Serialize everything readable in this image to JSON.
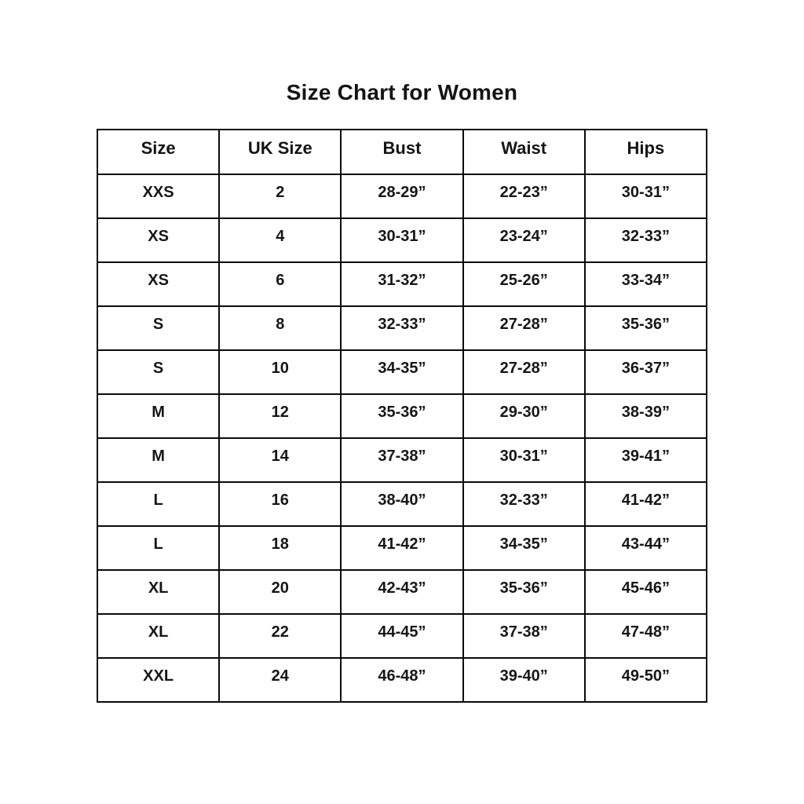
{
  "page": {
    "title": "Size Chart for Women"
  },
  "colors": {
    "background": "#ffffff",
    "border": "#0a0a0a",
    "text": "#141414"
  },
  "table": {
    "headers": [
      "Size",
      "UK Size",
      "Bust",
      "Waist",
      "Hips"
    ],
    "rows": [
      [
        "XXS",
        "2",
        "28-29”",
        "22-23”",
        "30-31”"
      ],
      [
        "XS",
        "4",
        "30-31”",
        "23-24”",
        "32-33”"
      ],
      [
        "XS",
        "6",
        "31-32”",
        "25-26”",
        "33-34”"
      ],
      [
        "S",
        "8",
        "32-33”",
        "27-28”",
        "35-36”"
      ],
      [
        "S",
        "10",
        "34-35”",
        "27-28”",
        "36-37”"
      ],
      [
        "M",
        "12",
        "35-36”",
        "29-30”",
        "38-39”"
      ],
      [
        "M",
        "14",
        "37-38”",
        "30-31”",
        "39-41”"
      ],
      [
        "L",
        "16",
        "38-40”",
        "32-33”",
        "41-42”"
      ],
      [
        "L",
        "18",
        "41-42”",
        "34-35”",
        "43-44”"
      ],
      [
        "XL",
        "20",
        "42-43”",
        "35-36”",
        "45-46”"
      ],
      [
        "XL",
        "22",
        "44-45”",
        "37-38”",
        "47-48”"
      ],
      [
        "XXL",
        "24",
        "46-48”",
        "39-40”",
        "49-50”"
      ]
    ]
  }
}
